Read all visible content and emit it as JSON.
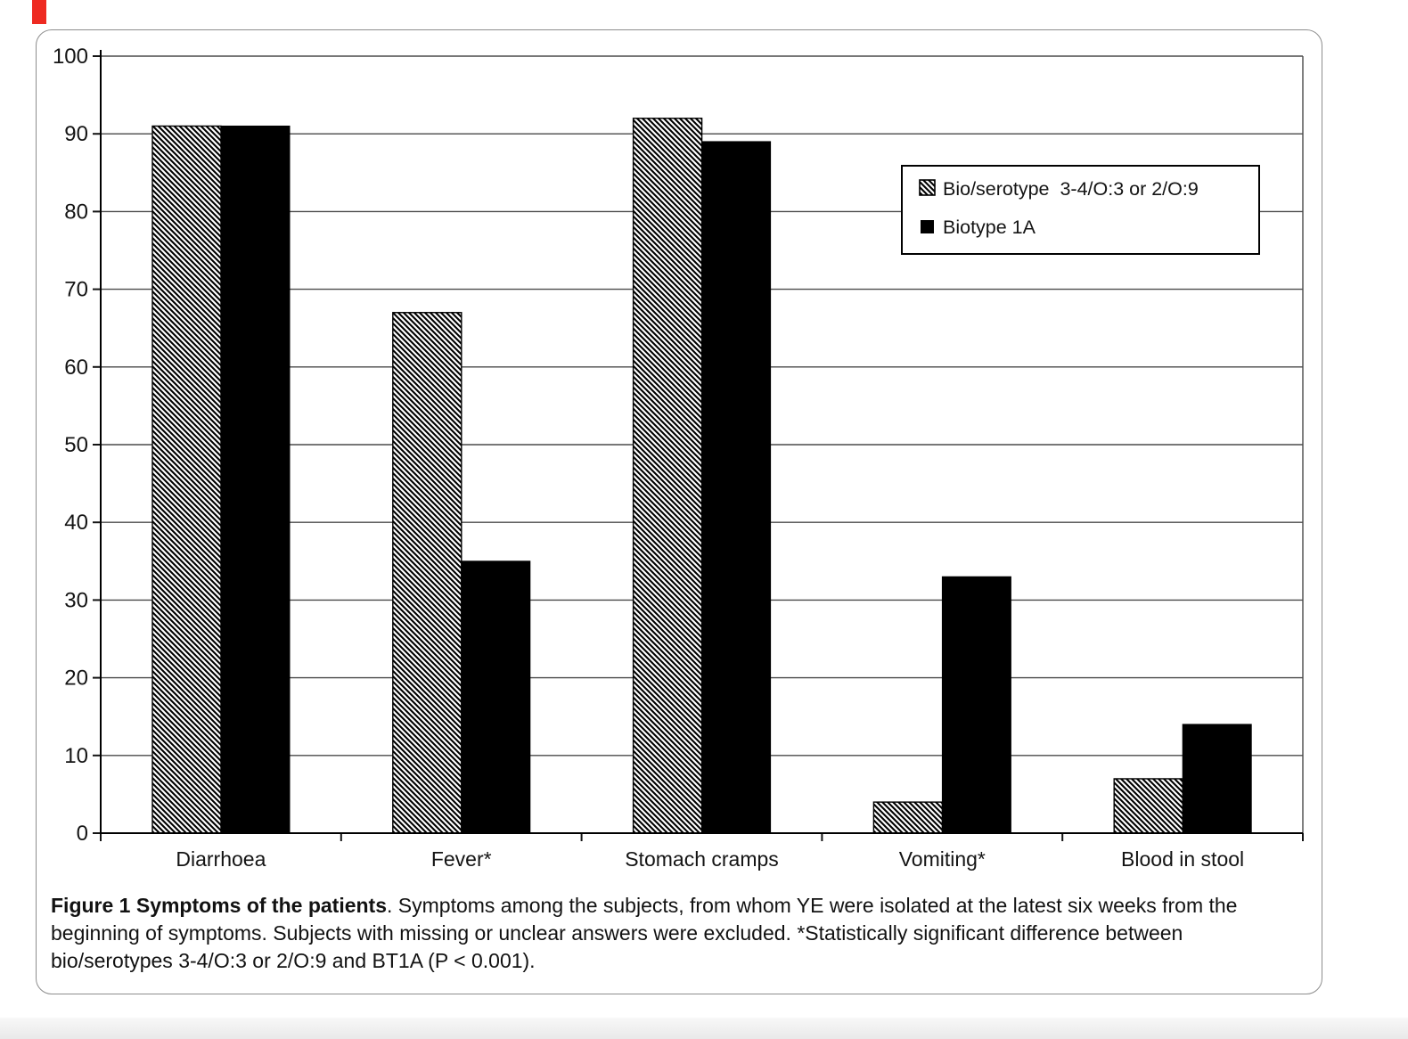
{
  "page": {
    "background": "#ffffff",
    "panel_border_color": "#8d8d8d",
    "footer_strip_color": "#e9e9e9",
    "red_marker_color": "#ee2a21"
  },
  "chart_data": {
    "type": "bar",
    "title": "",
    "xlabel": "",
    "ylabel": "",
    "categories": [
      "Diarrhoea",
      "Fever*",
      "Stomach cramps",
      "Vomiting*",
      "Blood in stool"
    ],
    "series": [
      {
        "name": "Bio/serotype  3-4/O:3 or 2/O:9",
        "pattern": "diagonal-hatch",
        "color": "#000000",
        "values": [
          91,
          67,
          92,
          4,
          7
        ]
      },
      {
        "name": "Biotype 1A",
        "pattern": "solid",
        "color": "#000000",
        "values": [
          91,
          35,
          89,
          33,
          14
        ]
      }
    ],
    "ylim": [
      0,
      100
    ],
    "ytick_step": 10,
    "ytick_labels": [
      "0",
      "10",
      "20",
      "30",
      "40",
      "50",
      "60",
      "70",
      "80",
      "90",
      "100"
    ],
    "grid": "horizontal",
    "gridline_color": "#4a4a4a",
    "legend_position": "upper-right"
  },
  "caption": {
    "bold": "Figure 1 Symptoms of the patients",
    "rest": ". Symptoms among the subjects, from whom YE were isolated at the latest six weeks from the beginning of symptoms. Subjects with missing or unclear answers were excluded. *Statistically significant difference between bio/serotypes 3-4/O:3 or 2/O:9 and BT1A (P < 0.001)."
  }
}
